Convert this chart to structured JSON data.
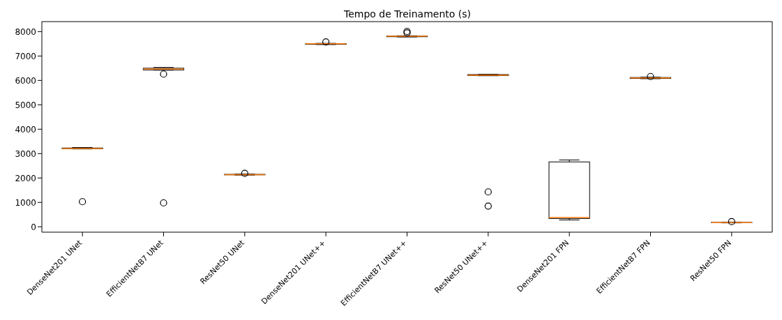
{
  "chart_data": {
    "type": "box",
    "title": "Tempo de Treinamento (s)",
    "categories": [
      "DenseNet201 UNet",
      "EfficientNetB7 UNet",
      "ResNet50 UNet",
      "DenseNet201 UNet++",
      "EfficientNetB7 UNet++",
      "ResNet50 UNet++",
      "DenseNet201 FPN",
      "EfficientNetB7 FPN",
      "ResNet50 FPN"
    ],
    "boxes": [
      {
        "low": 3190,
        "q1": 3200,
        "median": 3210,
        "q3": 3230,
        "high": 3250,
        "outliers": [
          1030
        ]
      },
      {
        "low": 6420,
        "q1": 6430,
        "median": 6470,
        "q3": 6500,
        "high": 6530,
        "outliers": [
          6260,
          980
        ]
      },
      {
        "low": 2120,
        "q1": 2130,
        "median": 2140,
        "q3": 2150,
        "high": 2160,
        "outliers": [
          2190
        ]
      },
      {
        "low": 7470,
        "q1": 7480,
        "median": 7500,
        "q3": 7510,
        "high": 7520,
        "outliers": [
          7580
        ]
      },
      {
        "low": 7780,
        "q1": 7790,
        "median": 7810,
        "q3": 7820,
        "high": 7830,
        "outliers": [
          7950,
          8010
        ]
      },
      {
        "low": 6190,
        "q1": 6200,
        "median": 6220,
        "q3": 6240,
        "high": 6250,
        "outliers": [
          1430,
          850
        ]
      },
      {
        "low": 280,
        "q1": 340,
        "median": 380,
        "q3": 2660,
        "high": 2740
      },
      {
        "low": 6070,
        "q1": 6080,
        "median": 6105,
        "q3": 6120,
        "high": 6130,
        "outliers": [
          6160
        ]
      },
      {
        "low": 160,
        "q1": 165,
        "median": 175,
        "q3": 180,
        "high": 185,
        "outliers": [
          210
        ]
      }
    ],
    "color": "#000000",
    "marker": "circle",
    "ylim": [
      -220,
      8410
    ],
    "yticks": [
      0,
      1000,
      2000,
      3000,
      4000,
      5000,
      6000,
      7000,
      8000
    ]
  }
}
